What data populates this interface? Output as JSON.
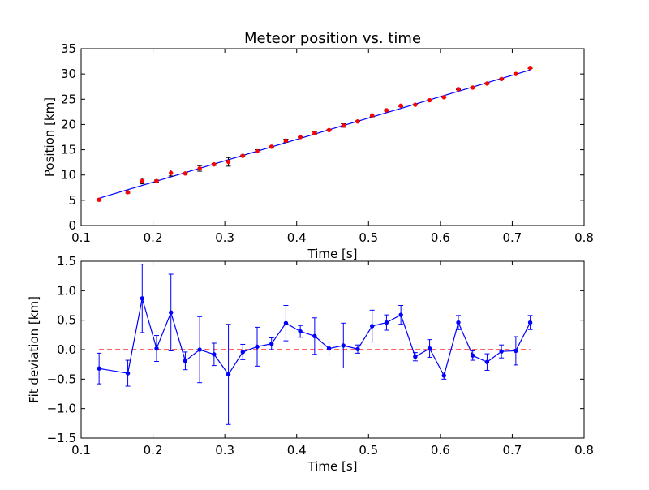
{
  "chart_data": [
    {
      "type": "scatter",
      "title": "Meteor position vs. time",
      "xlabel": "Time [s]",
      "ylabel": "Position [km]",
      "xlim": [
        0.1,
        0.8
      ],
      "ylim": [
        0,
        35
      ],
      "x_ticks": [
        "0.1",
        "0.2",
        "0.3",
        "0.4",
        "0.5",
        "0.6",
        "0.7",
        "0.8"
      ],
      "y_ticks": [
        "0",
        "5",
        "10",
        "15",
        "20",
        "25",
        "30",
        "35"
      ],
      "grid": false,
      "colors": {
        "points": "#ff0000",
        "fit": "#0000ff"
      },
      "series": [
        {
          "kind": "errorbar-points",
          "x": [
            0.125,
            0.165,
            0.185,
            0.205,
            0.225,
            0.245,
            0.265,
            0.285,
            0.305,
            0.325,
            0.345,
            0.365,
            0.385,
            0.405,
            0.425,
            0.445,
            0.465,
            0.485,
            0.505,
            0.525,
            0.545,
            0.565,
            0.585,
            0.605,
            0.625,
            0.645,
            0.665,
            0.685,
            0.705,
            0.725
          ],
          "y": [
            5.1,
            6.6,
            8.8,
            8.8,
            10.4,
            10.3,
            11.3,
            12.1,
            12.6,
            13.8,
            14.7,
            15.6,
            16.8,
            17.5,
            18.3,
            18.9,
            19.8,
            20.6,
            21.8,
            22.8,
            23.7,
            23.9,
            24.8,
            25.4,
            27.0,
            27.3,
            28.1,
            29.0,
            30.0,
            31.2
          ],
          "yerr": [
            0.25,
            0.2,
            0.55,
            0.2,
            0.6,
            0.15,
            0.55,
            0.2,
            0.85,
            0.15,
            0.3,
            0.1,
            0.3,
            0.1,
            0.3,
            0.1,
            0.35,
            0.1,
            0.27,
            0.15,
            0.15,
            0.07,
            0.15,
            0.07,
            0.12,
            0.07,
            0.12,
            0.07,
            0.2,
            0.12
          ]
        },
        {
          "kind": "fit-line",
          "x": [
            0.125,
            0.725
          ],
          "y": [
            5.4,
            30.8
          ]
        }
      ]
    },
    {
      "type": "line",
      "xlabel": "Time [s]",
      "ylabel": "Fit deviation [km]",
      "xlim": [
        0.1,
        0.8
      ],
      "ylim": [
        -1.5,
        1.5
      ],
      "x_ticks": [
        "0.1",
        "0.2",
        "0.3",
        "0.4",
        "0.5",
        "0.6",
        "0.7",
        "0.8"
      ],
      "y_ticks": [
        "1.5",
        "1.0",
        "0.5",
        "0.0",
        "−0.5",
        "−1.0",
        "−1.5"
      ],
      "y_tick_values": [
        1.5,
        1.0,
        0.5,
        0.0,
        -0.5,
        -1.0,
        -1.5
      ],
      "grid": false,
      "colors": {
        "line": "#0000ff",
        "zero": "#ff0000"
      },
      "reference_line": {
        "y": 0.0,
        "x_from": 0.125,
        "x_to": 0.725,
        "style": "dashed"
      },
      "series": [
        {
          "x": [
            0.125,
            0.165,
            0.185,
            0.205,
            0.225,
            0.245,
            0.265,
            0.285,
            0.305,
            0.325,
            0.345,
            0.365,
            0.385,
            0.405,
            0.425,
            0.445,
            0.465,
            0.485,
            0.505,
            0.525,
            0.545,
            0.565,
            0.585,
            0.605,
            0.625,
            0.645,
            0.665,
            0.685,
            0.705,
            0.725
          ],
          "y": [
            -0.32,
            -0.4,
            0.87,
            0.02,
            0.63,
            -0.19,
            0.0,
            -0.08,
            -0.42,
            -0.04,
            0.05,
            0.1,
            0.45,
            0.31,
            0.23,
            0.02,
            0.07,
            0.01,
            0.4,
            0.46,
            0.59,
            -0.12,
            0.02,
            -0.44,
            0.46,
            -0.1,
            -0.21,
            -0.03,
            -0.02,
            0.46
          ],
          "yerr": [
            0.26,
            0.22,
            0.58,
            0.22,
            0.65,
            0.15,
            0.56,
            0.19,
            0.85,
            0.13,
            0.33,
            0.1,
            0.3,
            0.1,
            0.31,
            0.11,
            0.38,
            0.07,
            0.27,
            0.13,
            0.16,
            0.07,
            0.15,
            0.06,
            0.12,
            0.08,
            0.14,
            0.11,
            0.24,
            0.12
          ]
        }
      ]
    }
  ]
}
